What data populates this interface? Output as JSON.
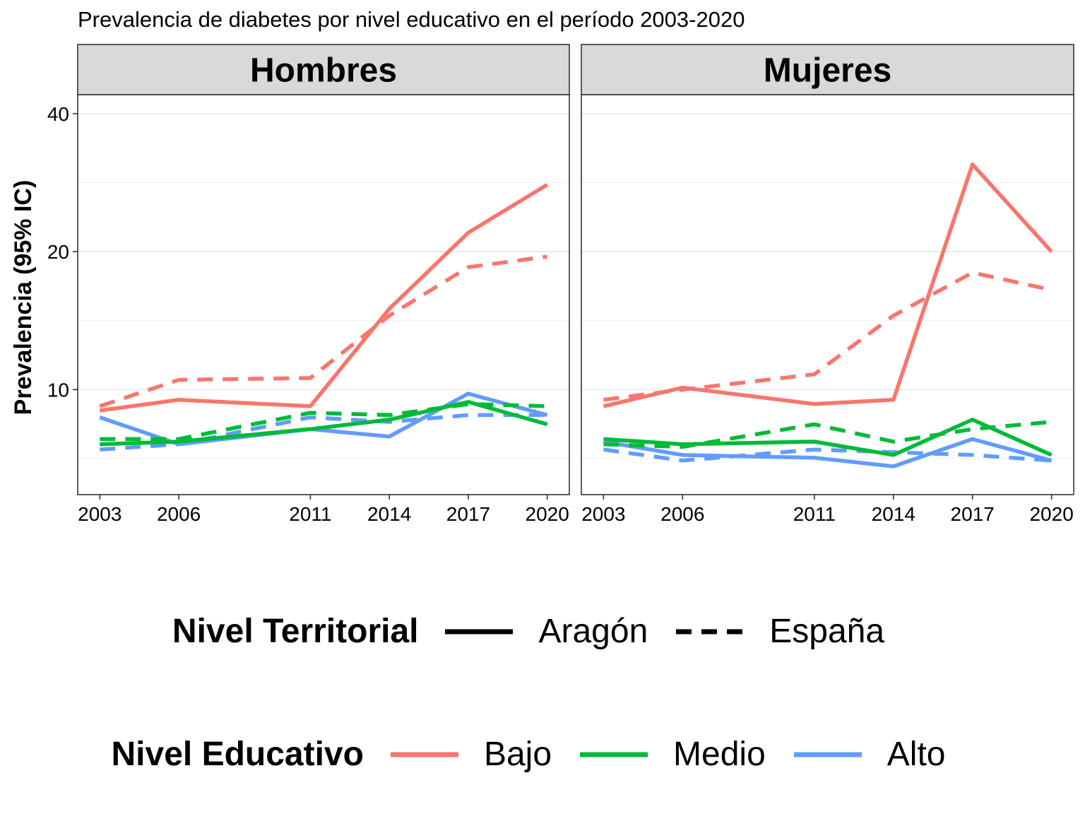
{
  "chart_data": {
    "type": "line",
    "title": "Prevalencia de diabetes por nivel educativo en el período 2003-2020",
    "ylabel": "Prevalencia (95% IC)",
    "xlabel": "",
    "x": [
      2003,
      2006,
      2011,
      2014,
      2017,
      2020
    ],
    "x_tick_labels": [
      "2003",
      "2006",
      "2011",
      "2014",
      "2017",
      "2020"
    ],
    "y_scale": "log",
    "y_ticks": [
      10,
      20,
      40
    ],
    "y_tick_labels": [
      "10",
      "20",
      "40"
    ],
    "ylim": [
      5.9,
      44
    ],
    "grid": true,
    "colors": {
      "Bajo": "#F8766D",
      "Medio": "#00BA38",
      "Alto": "#619CFF"
    },
    "panels": [
      {
        "name": "Hombres",
        "series": [
          {
            "educativo": "Bajo",
            "territorial": "Aragón",
            "values": [
              9.0,
              9.5,
              9.2,
              15.0,
              22.0,
              28.0
            ]
          },
          {
            "educativo": "Bajo",
            "territorial": "España",
            "values": [
              9.2,
              10.5,
              10.6,
              14.5,
              18.5,
              19.5
            ]
          },
          {
            "educativo": "Medio",
            "territorial": "Aragón",
            "values": [
              7.6,
              7.7,
              8.2,
              8.6,
              9.4,
              8.4
            ]
          },
          {
            "educativo": "Medio",
            "territorial": "España",
            "values": [
              7.8,
              7.8,
              8.9,
              8.8,
              9.3,
              9.2
            ]
          },
          {
            "educativo": "Alto",
            "territorial": "Aragón",
            "values": [
              8.7,
              7.6,
              8.2,
              7.9,
              9.8,
              8.8
            ]
          },
          {
            "educativo": "Alto",
            "territorial": "España",
            "values": [
              7.4,
              7.6,
              8.7,
              8.5,
              8.8,
              8.8
            ]
          }
        ]
      },
      {
        "name": "Mujeres",
        "series": [
          {
            "educativo": "Bajo",
            "territorial": "Aragón",
            "values": [
              9.2,
              10.1,
              9.3,
              9.5,
              31.0,
              20.0
            ]
          },
          {
            "educativo": "Bajo",
            "territorial": "España",
            "values": [
              9.5,
              10.0,
              10.8,
              14.5,
              18.0,
              16.5
            ]
          },
          {
            "educativo": "Medio",
            "territorial": "Aragón",
            "values": [
              7.8,
              7.6,
              7.7,
              7.2,
              8.6,
              7.2
            ]
          },
          {
            "educativo": "Medio",
            "territorial": "España",
            "values": [
              7.6,
              7.5,
              8.4,
              7.7,
              8.2,
              8.5
            ]
          },
          {
            "educativo": "Alto",
            "territorial": "Aragón",
            "values": [
              7.7,
              7.2,
              7.1,
              6.8,
              7.8,
              7.0
            ]
          },
          {
            "educativo": "Alto",
            "territorial": "España",
            "values": [
              7.4,
              7.0,
              7.4,
              7.3,
              7.2,
              7.0
            ]
          }
        ]
      }
    ],
    "legend": {
      "placement": "bottom",
      "territorial": {
        "title": "Nivel Territorial",
        "items": [
          "Aragón",
          "España"
        ]
      },
      "educativo": {
        "title": "Nivel Educativo",
        "items": [
          "Bajo",
          "Medio",
          "Alto"
        ]
      }
    }
  }
}
